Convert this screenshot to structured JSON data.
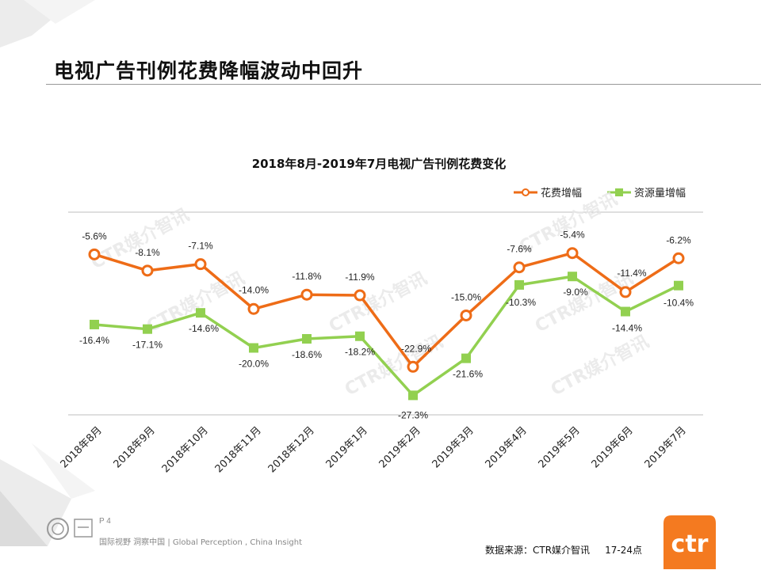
{
  "slide": {
    "title": "电视广告刊例花费降幅波动中回升",
    "page": "P 4",
    "tagline": "国际视野 洞察中国 | Global Perception , China Insight",
    "source": "数据来源：CTR媒介智讯     17-24点",
    "logo_text": "ctr",
    "watermark": "CTR媒介智讯"
  },
  "colors": {
    "spend": "#ee6c17",
    "resource": "#92d050",
    "logo": "#f47a20"
  },
  "chart_data": {
    "type": "line",
    "title": "2018年8月-2019年7月电视广告刊例花费变化",
    "categories": [
      "2018年8月",
      "2018年9月",
      "2018年10月",
      "2018年11月",
      "2018年12月",
      "2019年1月",
      "2019年2月",
      "2019年3月",
      "2019年4月",
      "2019年5月",
      "2019年6月",
      "2019年7月"
    ],
    "series": [
      {
        "name": "花费增幅",
        "values": [
          -5.6,
          -8.1,
          -7.1,
          -14.0,
          -11.8,
          -11.9,
          -22.9,
          -15.0,
          -7.6,
          -5.4,
          -11.4,
          -6.2
        ],
        "labels": [
          "-5.6%",
          "-8.1%",
          "-7.1%",
          "-14.0%",
          "-11.8%",
          "-11.9%",
          "-22.9%",
          "-15.0%",
          "-7.6%",
          "-5.4%",
          "-11.4%",
          "-6.2%"
        ]
      },
      {
        "name": "资源量增幅",
        "values": [
          -16.4,
          -17.1,
          -14.6,
          -20.0,
          -18.6,
          -18.2,
          -27.3,
          -21.6,
          -10.3,
          -9.0,
          -14.4,
          -10.4
        ],
        "labels": [
          "-16.4%",
          "-17.1%",
          "-14.6%",
          "-20.0%",
          "-18.6%",
          "-18.2%",
          "-27.3%",
          "-21.6%",
          "-10.3%",
          "-9.0%",
          "-14.4%",
          "-10.4%"
        ]
      }
    ],
    "ylim": [
      -30,
      0
    ],
    "xlabel": "",
    "ylabel": "",
    "legend": "top-right",
    "grid": false
  }
}
